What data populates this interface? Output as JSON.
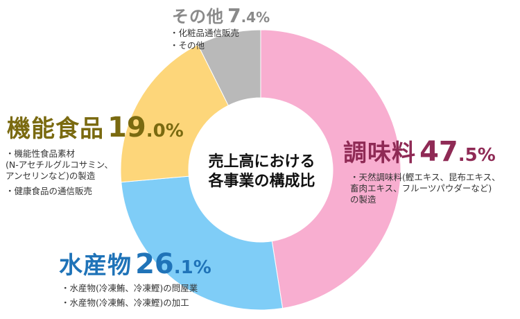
{
  "chart_data": {
    "type": "pie",
    "center_label": [
      "売上高における",
      "各事業の構成比"
    ],
    "slices": [
      {
        "name": "調味料",
        "value": 47.5,
        "int": "47",
        "dec": ".5",
        "pct": "%",
        "color": "#f8aed0",
        "label_color": "#8f2a55",
        "notes": [
          "天然調味料(鰹エキス、昆布エキス、\n畜肉エキス、フルーツパウダーなど)\nの製造"
        ]
      },
      {
        "name": "水産物",
        "value": 26.1,
        "int": "26",
        "dec": ".1",
        "pct": "%",
        "color": "#7fcdf7",
        "label_color": "#1f73b8",
        "notes": [
          "水産物(冷凍鮪、冷凍鰹)の問屋業",
          "水産物(冷凍鮪、冷凍鰹)の加工"
        ]
      },
      {
        "name": "機能食品",
        "value": 19.0,
        "int": "19",
        "dec": ".0",
        "pct": "%",
        "color": "#fdd67a",
        "label_color": "#7a6a10",
        "notes": [
          "機能性食品素材\n(N-アセチルグルコサミン、\nアンセリンなど)の製造",
          "健康食品の通信販売"
        ]
      },
      {
        "name": "その他",
        "value": 7.4,
        "int": "7",
        "dec": ".4",
        "pct": "%",
        "color": "#b9b9b9",
        "label_color": "#8a8a8a",
        "notes": [
          "化粧品通信販売",
          "その他"
        ]
      }
    ]
  }
}
